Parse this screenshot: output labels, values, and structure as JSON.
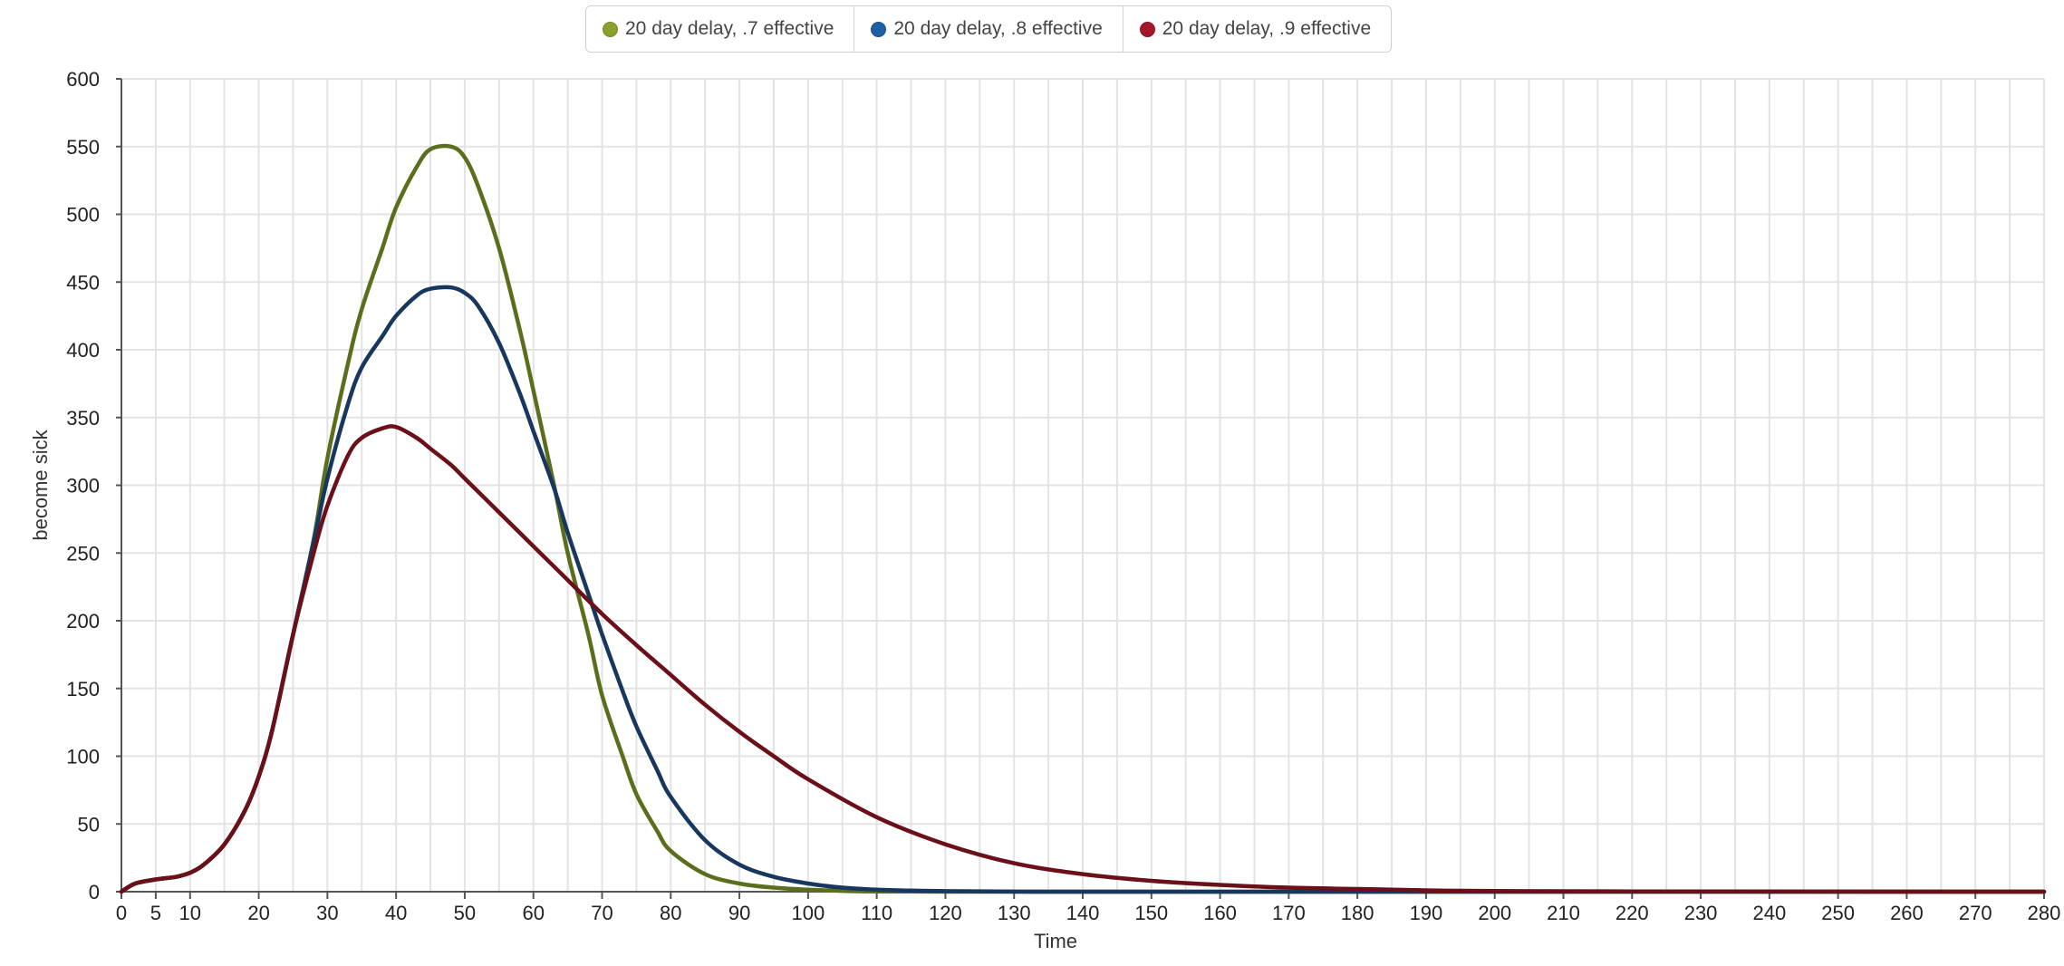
{
  "legend": {
    "items": [
      {
        "label": "20 day delay, .7 effective",
        "color": "#8aa12e"
      },
      {
        "label": "20 day delay, .8 effective",
        "color": "#1f5fa6"
      },
      {
        "label": "20 day delay, .9 effective",
        "color": "#a3172c"
      }
    ]
  },
  "chart_data": {
    "type": "line",
    "title": "",
    "xlabel": "Time",
    "ylabel": "become sick",
    "xlim": [
      0,
      280
    ],
    "ylim": [
      0,
      600
    ],
    "x_ticks": [
      0,
      5,
      10,
      20,
      30,
      40,
      50,
      60,
      70,
      80,
      90,
      100,
      110,
      120,
      130,
      140,
      150,
      160,
      170,
      180,
      190,
      200,
      210,
      220,
      230,
      240,
      250,
      260,
      270,
      280
    ],
    "y_ticks": [
      0,
      50,
      100,
      150,
      200,
      250,
      300,
      350,
      400,
      450,
      500,
      550,
      600
    ],
    "grid": true,
    "legend_position": "top-center",
    "series": [
      {
        "name": "20 day delay, .7 effective",
        "color": "#5b6e1c",
        "x": [
          0,
          2,
          5,
          8,
          10,
          12,
          15,
          18,
          20,
          22,
          25,
          28,
          30,
          33,
          35,
          38,
          40,
          43,
          45,
          48,
          50,
          52,
          55,
          58,
          60,
          63,
          65,
          68,
          70,
          73,
          75,
          78,
          80,
          85,
          90,
          95,
          100,
          105,
          110,
          120,
          140,
          280
        ],
        "y": [
          0,
          6,
          9,
          11,
          14,
          20,
          35,
          60,
          85,
          120,
          190,
          260,
          320,
          390,
          430,
          475,
          505,
          535,
          548,
          550,
          542,
          520,
          475,
          415,
          370,
          300,
          250,
          190,
          145,
          100,
          72,
          45,
          30,
          13,
          6,
          3,
          1.5,
          0.6,
          0.2,
          0,
          0,
          0
        ]
      },
      {
        "name": "20 day delay, .8 effective",
        "color": "#17375e",
        "x": [
          0,
          2,
          5,
          8,
          10,
          12,
          15,
          18,
          20,
          22,
          25,
          28,
          30,
          33,
          35,
          38,
          40,
          43,
          45,
          48,
          50,
          52,
          55,
          58,
          60,
          63,
          65,
          68,
          70,
          73,
          75,
          78,
          80,
          85,
          90,
          95,
          100,
          105,
          110,
          115,
          120,
          130,
          150,
          280
        ],
        "y": [
          0,
          6,
          9,
          11,
          14,
          20,
          35,
          60,
          85,
          120,
          190,
          258,
          305,
          360,
          387,
          410,
          425,
          440,
          445,
          446,
          442,
          432,
          405,
          368,
          340,
          298,
          265,
          220,
          190,
          148,
          122,
          90,
          70,
          38,
          20,
          11,
          6,
          3,
          1.5,
          0.8,
          0.4,
          0.1,
          0,
          0
        ]
      },
      {
        "name": "20 day delay, .9 effective",
        "color": "#6b0f19",
        "x": [
          0,
          2,
          5,
          8,
          10,
          12,
          15,
          18,
          20,
          22,
          25,
          28,
          30,
          33,
          35,
          38,
          40,
          43,
          45,
          48,
          50,
          55,
          60,
          65,
          70,
          75,
          80,
          85,
          90,
          95,
          100,
          110,
          120,
          130,
          140,
          150,
          160,
          170,
          180,
          190,
          200,
          220,
          280
        ],
        "y": [
          0,
          6,
          9,
          11,
          14,
          20,
          35,
          60,
          85,
          120,
          190,
          250,
          285,
          322,
          335,
          342,
          343,
          335,
          327,
          315,
          305,
          280,
          255,
          230,
          205,
          182,
          160,
          138,
          118,
          100,
          83,
          55,
          35,
          21,
          13,
          8,
          5,
          3,
          2,
          1,
          0.5,
          0.2,
          0
        ]
      }
    ]
  }
}
